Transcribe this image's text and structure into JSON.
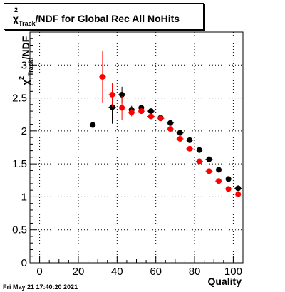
{
  "title": {
    "chi": "χ",
    "sup": "2",
    "sub": "Track",
    "rest": "/NDF for Global Rec All NoHits"
  },
  "ylabel": {
    "sup": "2",
    "chi": "χ",
    "sub": "Track",
    "rest": "/NDF"
  },
  "timestamp": "Fri May 21 17:40:20 2021",
  "colors": {
    "black_series": "#000000",
    "red_series": "#ff0000",
    "grid": "#000000"
  },
  "chart_data": {
    "type": "scatter",
    "title": "χ²_Track/NDF for Global Rec All NoHits",
    "xlabel": "Quality",
    "ylabel": "χ²_Track/NDF",
    "xlim": [
      -5,
      105
    ],
    "ylim": [
      0,
      3.5
    ],
    "xticks": [
      0,
      20,
      40,
      60,
      80,
      100
    ],
    "yticks": [
      0,
      0.5,
      1,
      1.5,
      2,
      2.5,
      3
    ],
    "xtick_labels": [
      "0",
      "20",
      "40",
      "60",
      "80",
      "100"
    ],
    "ytick_labels": [
      "0",
      "0.5",
      "1",
      "1.5",
      "2",
      "2.5",
      "3"
    ],
    "grid": true,
    "series": [
      {
        "color": "#000000",
        "x": [
          27.5,
          37.5,
          42.5,
          47.5,
          52.5,
          57.5,
          62.5,
          67.5,
          72.5,
          77.5,
          82.5,
          87.5,
          92.5,
          97.5,
          102.5
        ],
        "y": [
          2.09,
          2.36,
          2.55,
          2.32,
          2.35,
          2.3,
          2.2,
          2.12,
          1.97,
          1.86,
          1.71,
          1.57,
          1.41,
          1.27,
          1.13
        ],
        "yerr": [
          0.03,
          0.25,
          0.12,
          0.06,
          0.04,
          0.03,
          0.03,
          0.03,
          0.02,
          0.02,
          0.02,
          0.02,
          0.02,
          0.02,
          0.02
        ]
      },
      {
        "color": "#ff0000",
        "x": [
          32.5,
          37.5,
          42.5,
          47.5,
          52.5,
          57.5,
          62.5,
          67.5,
          72.5,
          77.5,
          82.5,
          87.5,
          92.5,
          97.5,
          102.5
        ],
        "y": [
          2.82,
          2.55,
          2.35,
          2.28,
          2.3,
          2.22,
          2.19,
          2.03,
          1.88,
          1.73,
          1.54,
          1.39,
          1.24,
          1.12,
          1.04
        ],
        "yerr": [
          0.4,
          0.18,
          0.18,
          0.06,
          0.04,
          0.03,
          0.03,
          0.03,
          0.02,
          0.02,
          0.02,
          0.02,
          0.02,
          0.02,
          0.02
        ]
      }
    ]
  }
}
